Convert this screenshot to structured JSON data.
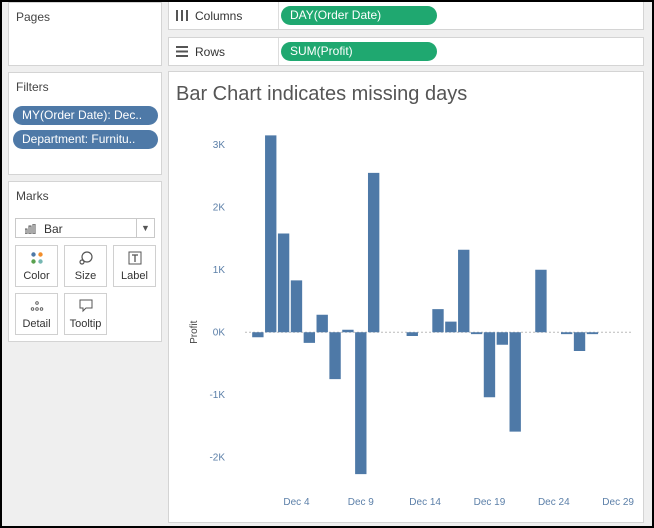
{
  "pages": {
    "title": "Pages"
  },
  "filters": {
    "title": "Filters",
    "items": [
      {
        "label": "MY(Order Date): Dec.."
      },
      {
        "label": "Department: Furnitu.."
      }
    ]
  },
  "marks": {
    "title": "Marks",
    "type": "Bar",
    "buttons": [
      {
        "label": "Color",
        "icon": "color-dots-icon"
      },
      {
        "label": "Size",
        "icon": "size-icon"
      },
      {
        "label": "Label",
        "icon": "label-icon"
      },
      {
        "label": "Detail",
        "icon": "detail-icon"
      },
      {
        "label": "Tooltip",
        "icon": "tooltip-icon"
      }
    ]
  },
  "shelves": {
    "columns": {
      "label": "Columns",
      "pill": "DAY(Order Date)"
    },
    "rows": {
      "label": "Rows",
      "pill": "SUM(Profit)"
    }
  },
  "colors": {
    "bar": "#4e79a7",
    "filter_pill": "#4e79a7",
    "shelf_pill": "#1fa870"
  },
  "chart_data": {
    "type": "bar",
    "title": "Bar Chart indicates missing days",
    "ylabel": "Profit",
    "xlabel": "",
    "ylim": [
      -2300,
      3300
    ],
    "y_ticks": [
      3000,
      2000,
      1000,
      0,
      -1000,
      -2000
    ],
    "y_tick_labels": [
      "3K",
      "2K",
      "1K",
      "0K",
      "-1K",
      "-2K"
    ],
    "x_ticks": [
      4,
      9,
      14,
      19,
      24,
      29
    ],
    "x_tick_labels": [
      "Dec 4",
      "Dec 9",
      "Dec 14",
      "Dec 19",
      "Dec 24",
      "Dec 29"
    ],
    "x_range": [
      0,
      30
    ],
    "x": [
      1,
      2,
      3,
      4,
      5,
      6,
      7,
      8,
      9,
      10,
      13,
      15,
      16,
      17,
      18,
      19,
      20,
      21,
      23,
      25,
      26,
      27
    ],
    "values": [
      -80,
      3150,
      1580,
      830,
      -170,
      280,
      -750,
      40,
      -2270,
      2550,
      -60,
      370,
      170,
      1320,
      -30,
      -1040,
      -200,
      -1590,
      1000,
      -30,
      -300,
      -30
    ],
    "grid": false
  }
}
